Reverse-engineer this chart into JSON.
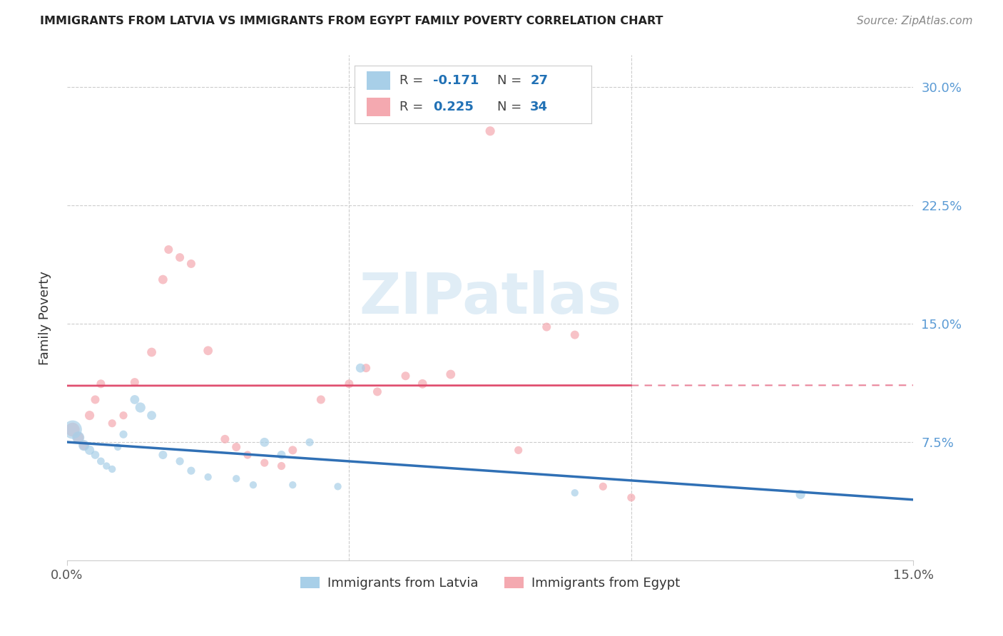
{
  "title": "IMMIGRANTS FROM LATVIA VS IMMIGRANTS FROM EGYPT FAMILY POVERTY CORRELATION CHART",
  "source": "Source: ZipAtlas.com",
  "ylabel": "Family Poverty",
  "xlim": [
    0.0,
    0.15
  ],
  "ylim": [
    0.0,
    0.32
  ],
  "yticks": [
    0.075,
    0.15,
    0.225,
    0.3
  ],
  "ytick_labels": [
    "7.5%",
    "15.0%",
    "22.5%",
    "30.0%"
  ],
  "watermark_text": "ZIPatlas",
  "legend_label1": "Immigrants from Latvia",
  "legend_label2": "Immigrants from Egypt",
  "color_latvia": "#a8cfe8",
  "color_egypt": "#f4a9b0",
  "color_line_latvia": "#3070b5",
  "color_line_egypt": "#e05070",
  "background_color": "#ffffff",
  "grid_color": "#cccccc",
  "latvia_x": [
    0.001,
    0.002,
    0.003,
    0.004,
    0.005,
    0.006,
    0.007,
    0.008,
    0.009,
    0.01,
    0.012,
    0.013,
    0.015,
    0.017,
    0.02,
    0.022,
    0.025,
    0.03,
    0.033,
    0.035,
    0.038,
    0.04,
    0.043,
    0.048,
    0.052,
    0.09,
    0.13
  ],
  "latvia_y": [
    0.083,
    0.078,
    0.073,
    0.07,
    0.067,
    0.063,
    0.06,
    0.058,
    0.072,
    0.08,
    0.102,
    0.097,
    0.092,
    0.067,
    0.063,
    0.057,
    0.053,
    0.052,
    0.048,
    0.075,
    0.067,
    0.048,
    0.075,
    0.047,
    0.122,
    0.043,
    0.042
  ],
  "latvia_sizes": [
    350,
    150,
    120,
    90,
    70,
    60,
    55,
    55,
    55,
    65,
    85,
    105,
    85,
    75,
    65,
    65,
    55,
    55,
    55,
    85,
    75,
    55,
    65,
    55,
    85,
    55,
    90
  ],
  "egypt_x": [
    0.001,
    0.002,
    0.003,
    0.004,
    0.005,
    0.006,
    0.008,
    0.01,
    0.012,
    0.015,
    0.017,
    0.018,
    0.02,
    0.022,
    0.025,
    0.028,
    0.03,
    0.032,
    0.035,
    0.038,
    0.04,
    0.045,
    0.05,
    0.053,
    0.055,
    0.06,
    0.063,
    0.068,
    0.075,
    0.08,
    0.085,
    0.09,
    0.095,
    0.1
  ],
  "egypt_y": [
    0.083,
    0.078,
    0.073,
    0.092,
    0.102,
    0.112,
    0.087,
    0.092,
    0.113,
    0.132,
    0.178,
    0.197,
    0.192,
    0.188,
    0.133,
    0.077,
    0.072,
    0.067,
    0.062,
    0.06,
    0.07,
    0.102,
    0.112,
    0.122,
    0.107,
    0.117,
    0.112,
    0.118,
    0.272,
    0.07,
    0.148,
    0.143,
    0.047,
    0.04
  ],
  "egypt_sizes": [
    200,
    120,
    90,
    90,
    75,
    75,
    65,
    65,
    75,
    85,
    85,
    75,
    75,
    75,
    85,
    75,
    75,
    65,
    65,
    65,
    75,
    75,
    75,
    75,
    75,
    75,
    85,
    85,
    90,
    65,
    75,
    75,
    65,
    65
  ]
}
